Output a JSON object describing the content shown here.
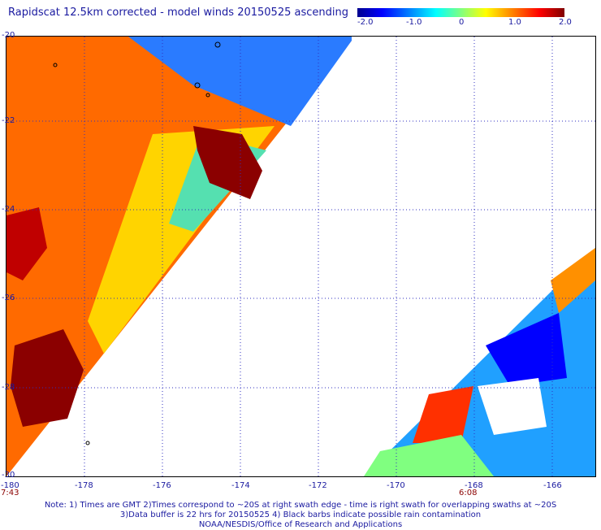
{
  "title": "Rapidscat 12.5km corrected - model winds 20150525 ascending",
  "colorbar": {
    "ticks": [
      "-2.0",
      "-1.0",
      "0",
      "1.0",
      "2.0"
    ],
    "colors": [
      "#00008f",
      "#0000ff",
      "#0080ff",
      "#00ffff",
      "#80ff80",
      "#ffff00",
      "#ff8000",
      "#ff0000",
      "#800000"
    ]
  },
  "map": {
    "x_ticks": [
      "-180",
      "-178",
      "-176",
      "-174",
      "-172",
      "-170",
      "-168",
      "-166"
    ],
    "y_ticks": [
      "-20",
      "-22",
      "-24",
      "-26",
      "-28",
      "-30"
    ],
    "time_labels": {
      "left": "7:43",
      "right": "6:08"
    }
  },
  "notes": [
    "Note: 1) Times are GMT 2)Times correspond to ~20S at right swath edge - time is right swath for overlapping swaths at ~20S",
    "3)Data buffer is 22 hrs for 20150525 4) Black barbs indicate possible rain contamination",
    "NOAA/NESDIS/Office of Research and Applications"
  ]
}
